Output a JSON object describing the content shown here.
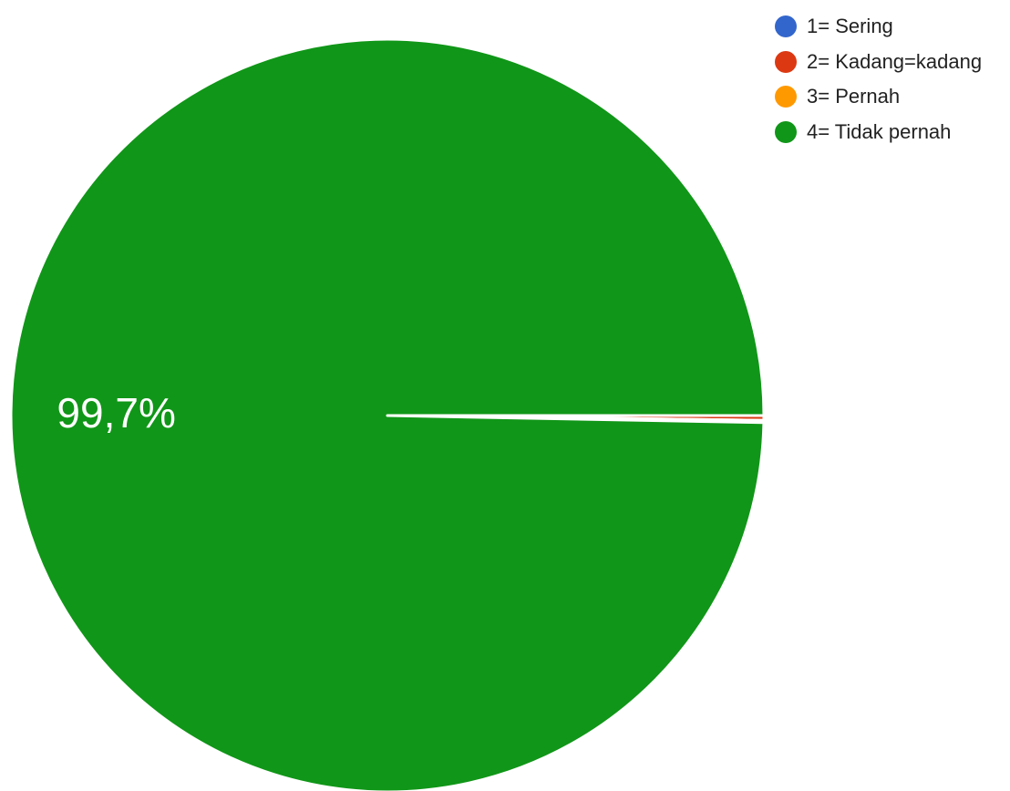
{
  "chart_data": {
    "type": "pie",
    "series": [
      {
        "name": "1= Sering",
        "value": 0.0,
        "color": "#3366cc"
      },
      {
        "name": "2= Kadang=kadang",
        "value": 0.2,
        "color": "#dc3912"
      },
      {
        "name": "3= Pernah",
        "value": 0.1,
        "color": "#ff9900"
      },
      {
        "name": "4= Tidak pernah",
        "value": 99.7,
        "color": "#109618"
      }
    ],
    "data_labels": {
      "4= Tidak pernah": "99,7%"
    },
    "legend_position": "top-right",
    "unit": "%"
  }
}
